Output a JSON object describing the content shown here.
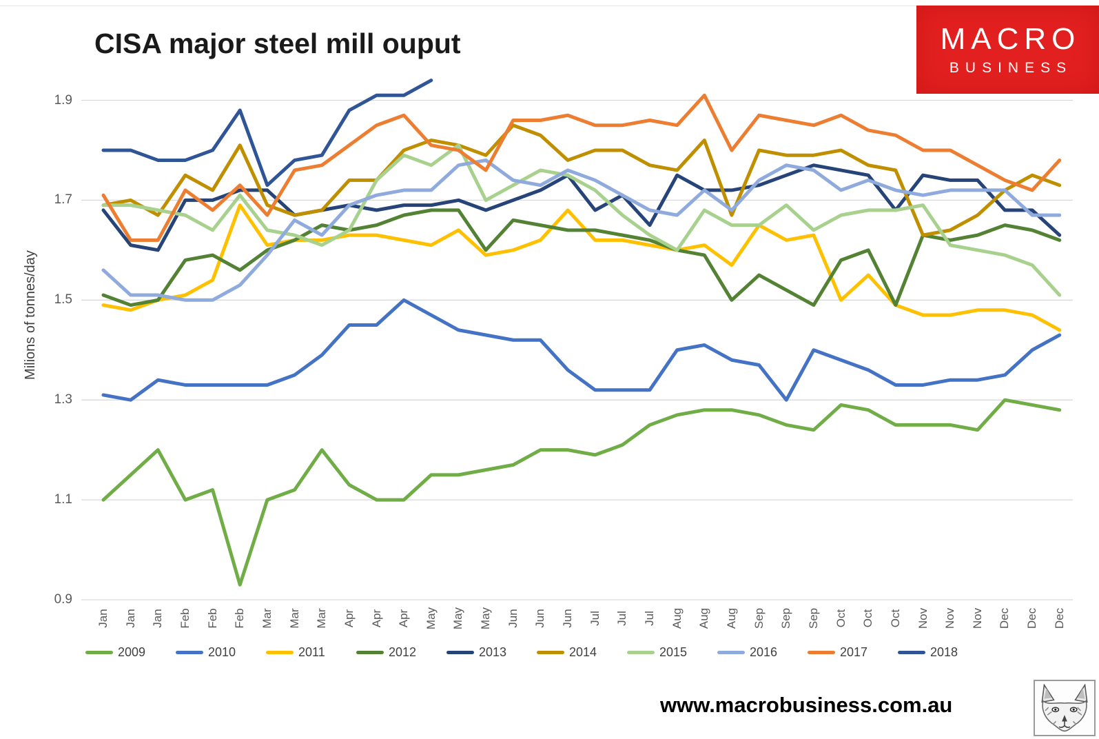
{
  "header": {
    "title": "CISA major steel mill ouput",
    "logo": {
      "line1": "MACRO",
      "line2": "BUSINESS"
    }
  },
  "footer": {
    "url": "www.macrobusiness.com.au"
  },
  "chart_data": {
    "type": "line",
    "title": "CISA major steel mill ouput",
    "xlabel": "",
    "ylabel": "Milions of tonnes/day",
    "ylim": [
      0.9,
      1.95
    ],
    "y_ticks": [
      0.9,
      1.1,
      1.3,
      1.5,
      1.7,
      1.9
    ],
    "grid": true,
    "legend_position": "bottom",
    "x_tick_labels": [
      "Jan",
      "Jan",
      "Jan",
      "Feb",
      "Feb",
      "Feb",
      "Mar",
      "Mar",
      "Mar",
      "Apr",
      "Apr",
      "Apr",
      "May",
      "May",
      "May",
      "Jun",
      "Jun",
      "Jun",
      "Jul",
      "Jul",
      "Jul",
      "Aug",
      "Aug",
      "Aug",
      "Sep",
      "Sep",
      "Sep",
      "Oct",
      "Oct",
      "Oct",
      "Nov",
      "Nov",
      "Nov",
      "Dec",
      "Dec",
      "Dec"
    ],
    "series": [
      {
        "name": "2009",
        "color": "#70AD47",
        "values": [
          1.1,
          1.15,
          1.2,
          1.1,
          1.12,
          0.93,
          1.1,
          1.12,
          1.2,
          1.13,
          1.1,
          1.1,
          1.15,
          1.15,
          1.16,
          1.17,
          1.2,
          1.2,
          1.19,
          1.21,
          1.25,
          1.27,
          1.28,
          1.28,
          1.27,
          1.25,
          1.24,
          1.29,
          1.28,
          1.25,
          1.25,
          1.25,
          1.24,
          1.3,
          1.29,
          1.28
        ]
      },
      {
        "name": "2010",
        "color": "#4472C4",
        "values": [
          1.31,
          1.3,
          1.34,
          1.33,
          1.33,
          1.33,
          1.33,
          1.35,
          1.39,
          1.45,
          1.45,
          1.5,
          1.47,
          1.44,
          1.43,
          1.42,
          1.42,
          1.36,
          1.32,
          1.32,
          1.32,
          1.4,
          1.41,
          1.38,
          1.37,
          1.3,
          1.4,
          1.38,
          1.36,
          1.33,
          1.33,
          1.34,
          1.34,
          1.35,
          1.4,
          1.43
        ]
      },
      {
        "name": "2011",
        "color": "#FFC000",
        "values": [
          1.49,
          1.48,
          1.5,
          1.51,
          1.54,
          1.69,
          1.61,
          1.62,
          1.62,
          1.63,
          1.63,
          1.62,
          1.61,
          1.64,
          1.59,
          1.6,
          1.62,
          1.68,
          1.62,
          1.62,
          1.61,
          1.6,
          1.61,
          1.57,
          1.65,
          1.62,
          1.63,
          1.5,
          1.55,
          1.49,
          1.47,
          1.47,
          1.48,
          1.48,
          1.47,
          1.44
        ]
      },
      {
        "name": "2012",
        "color": "#548235",
        "values": [
          1.51,
          1.49,
          1.5,
          1.58,
          1.59,
          1.56,
          1.6,
          1.62,
          1.65,
          1.64,
          1.65,
          1.67,
          1.68,
          1.68,
          1.6,
          1.66,
          1.65,
          1.64,
          1.64,
          1.63,
          1.62,
          1.6,
          1.59,
          1.5,
          1.55,
          1.52,
          1.49,
          1.58,
          1.6,
          1.49,
          1.63,
          1.62,
          1.63,
          1.65,
          1.64,
          1.62
        ]
      },
      {
        "name": "2013",
        "color": "#264478",
        "values": [
          1.68,
          1.61,
          1.6,
          1.7,
          1.7,
          1.72,
          1.72,
          1.67,
          1.68,
          1.69,
          1.68,
          1.69,
          1.69,
          1.7,
          1.68,
          1.7,
          1.72,
          1.75,
          1.68,
          1.71,
          1.65,
          1.75,
          1.72,
          1.72,
          1.73,
          1.75,
          1.77,
          1.76,
          1.75,
          1.68,
          1.75,
          1.74,
          1.74,
          1.68,
          1.68,
          1.63
        ]
      },
      {
        "name": "2014",
        "color": "#BF8F00",
        "values": [
          1.69,
          1.7,
          1.67,
          1.75,
          1.72,
          1.81,
          1.69,
          1.67,
          1.68,
          1.74,
          1.74,
          1.8,
          1.82,
          1.81,
          1.79,
          1.85,
          1.83,
          1.78,
          1.8,
          1.8,
          1.77,
          1.76,
          1.82,
          1.67,
          1.8,
          1.79,
          1.79,
          1.8,
          1.77,
          1.76,
          1.63,
          1.64,
          1.67,
          1.72,
          1.75,
          1.73
        ]
      },
      {
        "name": "2015",
        "color": "#A9D18E",
        "values": [
          1.69,
          1.69,
          1.68,
          1.67,
          1.64,
          1.71,
          1.64,
          1.63,
          1.61,
          1.64,
          1.74,
          1.79,
          1.77,
          1.81,
          1.7,
          1.73,
          1.76,
          1.75,
          1.72,
          1.67,
          1.63,
          1.6,
          1.68,
          1.65,
          1.65,
          1.69,
          1.64,
          1.67,
          1.68,
          1.68,
          1.69,
          1.61,
          1.6,
          1.59,
          1.57,
          1.51
        ]
      },
      {
        "name": "2016",
        "color": "#8FAADC",
        "values": [
          1.56,
          1.51,
          1.51,
          1.5,
          1.5,
          1.53,
          1.59,
          1.66,
          1.63,
          1.69,
          1.71,
          1.72,
          1.72,
          1.77,
          1.78,
          1.74,
          1.73,
          1.76,
          1.74,
          1.71,
          1.68,
          1.67,
          1.72,
          1.68,
          1.74,
          1.77,
          1.76,
          1.72,
          1.74,
          1.72,
          1.71,
          1.72,
          1.72,
          1.72,
          1.67,
          1.67
        ]
      },
      {
        "name": "2017",
        "color": "#ED7D31",
        "values": [
          1.71,
          1.62,
          1.62,
          1.72,
          1.68,
          1.73,
          1.67,
          1.76,
          1.77,
          1.81,
          1.85,
          1.87,
          1.81,
          1.8,
          1.76,
          1.86,
          1.86,
          1.87,
          1.85,
          1.85,
          1.86,
          1.85,
          1.91,
          1.8,
          1.87,
          1.86,
          1.85,
          1.87,
          1.84,
          1.83,
          1.8,
          1.8,
          1.77,
          1.74,
          1.72,
          1.78
        ]
      },
      {
        "name": "2018",
        "color": "#2F5597",
        "values": [
          1.8,
          1.8,
          1.78,
          1.78,
          1.8,
          1.88,
          1.73,
          1.78,
          1.79,
          1.88,
          1.91,
          1.91,
          1.94,
          null,
          null,
          null,
          null,
          null,
          null,
          null,
          null,
          null,
          null,
          null,
          null,
          null,
          null,
          null,
          null,
          null,
          null,
          null,
          null,
          null,
          null,
          null
        ]
      }
    ]
  }
}
